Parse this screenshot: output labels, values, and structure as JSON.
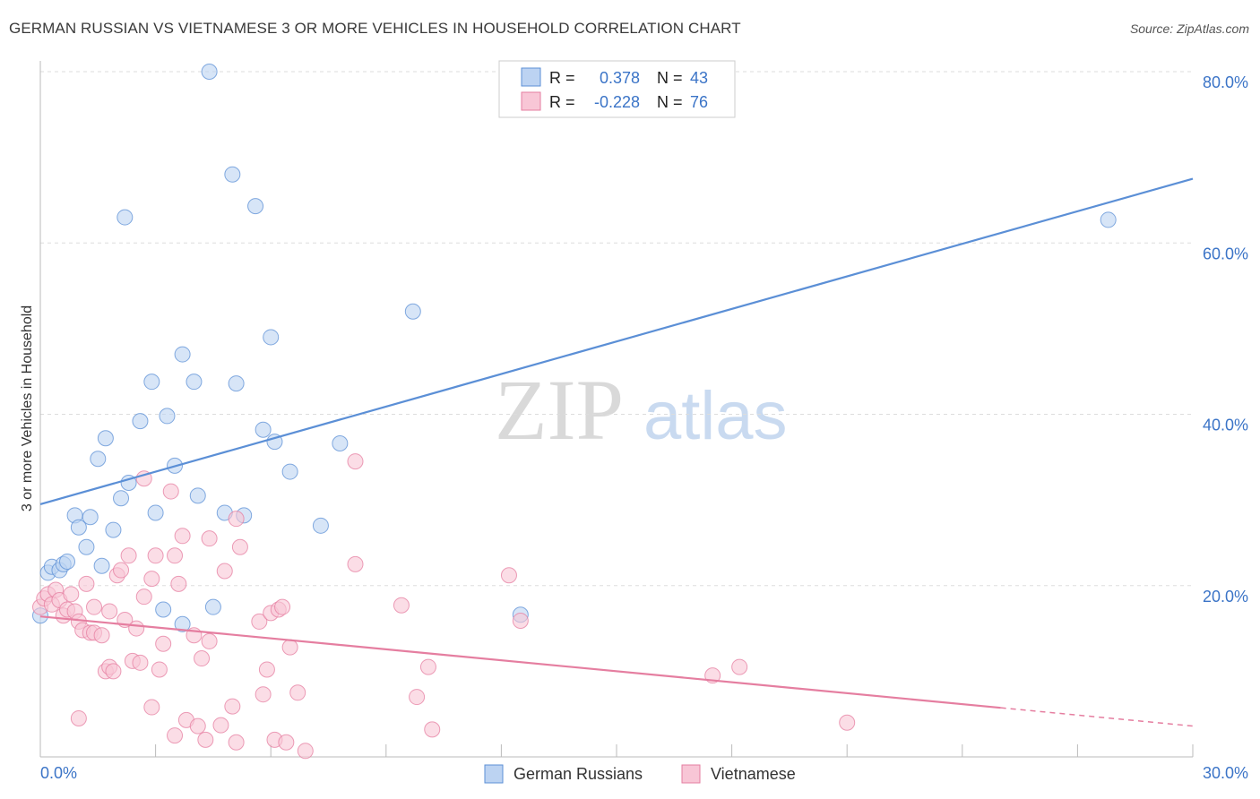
{
  "title": "GERMAN RUSSIAN VS VIETNAMESE 3 OR MORE VEHICLES IN HOUSEHOLD CORRELATION CHART",
  "source": "Source: ZipAtlas.com",
  "watermark": {
    "zip": "ZIP",
    "atlas": "atlas"
  },
  "stats": {
    "r_label": "R =",
    "n_label": "N =",
    "rows": [
      {
        "r": "0.378",
        "n": "43",
        "color": "#5b8fd6",
        "fill": "#bcd3f2"
      },
      {
        "r": "-0.228",
        "n": "76",
        "color": "#e57ea0",
        "fill": "#f8c6d6"
      }
    ]
  },
  "chart_data": {
    "type": "scatter",
    "title": "GERMAN RUSSIAN VS VIETNAMESE 3 OR MORE VEHICLES IN HOUSEHOLD CORRELATION CHART",
    "xlabel": "",
    "ylabel": "3 or more Vehicles in Household",
    "xlim": [
      0,
      30
    ],
    "ylim": [
      0,
      80
    ],
    "x_tick_labels": [
      "0.0%",
      "30.0%"
    ],
    "y_ticks": [
      20,
      40,
      60,
      80
    ],
    "y_tick_labels": [
      "20.0%",
      "40.0%",
      "60.0%",
      "80.0%"
    ],
    "grid": true,
    "legend_position": "bottom-center",
    "series": [
      {
        "name": "German Russians",
        "color": "#5b8fd6",
        "fill": "#bcd3f2",
        "trend": {
          "x": [
            0,
            30
          ],
          "y": [
            29.5,
            67.5
          ],
          "dashed_from": null
        },
        "points": [
          [
            0.0,
            16.5
          ],
          [
            0.2,
            21.5
          ],
          [
            0.3,
            22.2
          ],
          [
            0.5,
            21.8
          ],
          [
            0.6,
            22.5
          ],
          [
            0.7,
            22.8
          ],
          [
            0.9,
            28.2
          ],
          [
            1.0,
            26.8
          ],
          [
            1.2,
            24.5
          ],
          [
            1.3,
            28.0
          ],
          [
            1.5,
            34.8
          ],
          [
            1.6,
            22.3
          ],
          [
            1.7,
            37.2
          ],
          [
            1.9,
            26.5
          ],
          [
            2.1,
            30.2
          ],
          [
            2.2,
            63.0
          ],
          [
            2.3,
            32.0
          ],
          [
            2.6,
            39.2
          ],
          [
            2.9,
            43.8
          ],
          [
            3.0,
            28.5
          ],
          [
            3.2,
            17.2
          ],
          [
            3.3,
            39.8
          ],
          [
            3.5,
            34.0
          ],
          [
            3.7,
            15.5
          ],
          [
            3.7,
            47.0
          ],
          [
            4.0,
            43.8
          ],
          [
            4.1,
            30.5
          ],
          [
            4.4,
            80.0
          ],
          [
            4.5,
            17.5
          ],
          [
            4.8,
            28.5
          ],
          [
            5.0,
            68.0
          ],
          [
            5.1,
            43.6
          ],
          [
            5.3,
            28.2
          ],
          [
            5.6,
            64.3
          ],
          [
            5.8,
            38.2
          ],
          [
            6.0,
            49.0
          ],
          [
            6.1,
            36.8
          ],
          [
            6.5,
            33.3
          ],
          [
            7.3,
            27.0
          ],
          [
            7.8,
            36.6
          ],
          [
            9.7,
            52.0
          ],
          [
            12.5,
            16.6
          ],
          [
            27.8,
            62.7
          ]
        ]
      },
      {
        "name": "Vietnamese",
        "color": "#e57ea0",
        "fill": "#f8c6d6",
        "trend": {
          "x": [
            0,
            30
          ],
          "y": [
            16.4,
            3.6
          ],
          "dashed_from": 25
        },
        "points": [
          [
            0.0,
            17.5
          ],
          [
            0.1,
            18.5
          ],
          [
            0.2,
            19.0
          ],
          [
            0.3,
            17.8
          ],
          [
            0.4,
            19.5
          ],
          [
            0.5,
            18.3
          ],
          [
            0.6,
            16.5
          ],
          [
            0.7,
            17.2
          ],
          [
            0.8,
            19.0
          ],
          [
            0.9,
            17.0
          ],
          [
            1.0,
            15.8
          ],
          [
            1.0,
            4.5
          ],
          [
            1.1,
            14.8
          ],
          [
            1.2,
            20.2
          ],
          [
            1.3,
            14.5
          ],
          [
            1.4,
            14.5
          ],
          [
            1.4,
            17.5
          ],
          [
            1.6,
            14.2
          ],
          [
            1.7,
            10.0
          ],
          [
            1.8,
            10.5
          ],
          [
            1.8,
            17.0
          ],
          [
            1.9,
            10.0
          ],
          [
            2.0,
            21.2
          ],
          [
            2.1,
            21.8
          ],
          [
            2.2,
            16.0
          ],
          [
            2.3,
            23.5
          ],
          [
            2.4,
            11.2
          ],
          [
            2.5,
            15.0
          ],
          [
            2.6,
            11.0
          ],
          [
            2.7,
            18.7
          ],
          [
            2.7,
            32.5
          ],
          [
            2.9,
            20.8
          ],
          [
            2.9,
            5.8
          ],
          [
            3.0,
            23.5
          ],
          [
            3.1,
            10.2
          ],
          [
            3.2,
            13.2
          ],
          [
            3.4,
            31.0
          ],
          [
            3.5,
            2.5
          ],
          [
            3.5,
            23.5
          ],
          [
            3.6,
            20.2
          ],
          [
            3.7,
            25.8
          ],
          [
            3.8,
            4.3
          ],
          [
            4.0,
            14.2
          ],
          [
            4.1,
            3.6
          ],
          [
            4.2,
            11.5
          ],
          [
            4.3,
            2.0
          ],
          [
            4.4,
            13.5
          ],
          [
            4.4,
            25.5
          ],
          [
            4.7,
            3.7
          ],
          [
            4.8,
            21.7
          ],
          [
            5.0,
            5.9
          ],
          [
            5.1,
            27.8
          ],
          [
            5.1,
            1.7
          ],
          [
            5.2,
            24.5
          ],
          [
            5.7,
            15.8
          ],
          [
            5.8,
            7.3
          ],
          [
            5.9,
            10.2
          ],
          [
            6.0,
            16.8
          ],
          [
            6.1,
            2.0
          ],
          [
            6.2,
            17.2
          ],
          [
            6.3,
            17.5
          ],
          [
            6.4,
            1.7
          ],
          [
            6.5,
            12.8
          ],
          [
            6.7,
            7.5
          ],
          [
            6.9,
            0.7
          ],
          [
            8.2,
            34.5
          ],
          [
            8.2,
            22.5
          ],
          [
            9.4,
            17.7
          ],
          [
            9.8,
            7.0
          ],
          [
            10.1,
            10.5
          ],
          [
            10.2,
            3.2
          ],
          [
            12.2,
            21.2
          ],
          [
            12.5,
            15.9
          ],
          [
            17.5,
            9.5
          ],
          [
            18.2,
            10.5
          ],
          [
            21.0,
            4.0
          ]
        ]
      }
    ]
  }
}
